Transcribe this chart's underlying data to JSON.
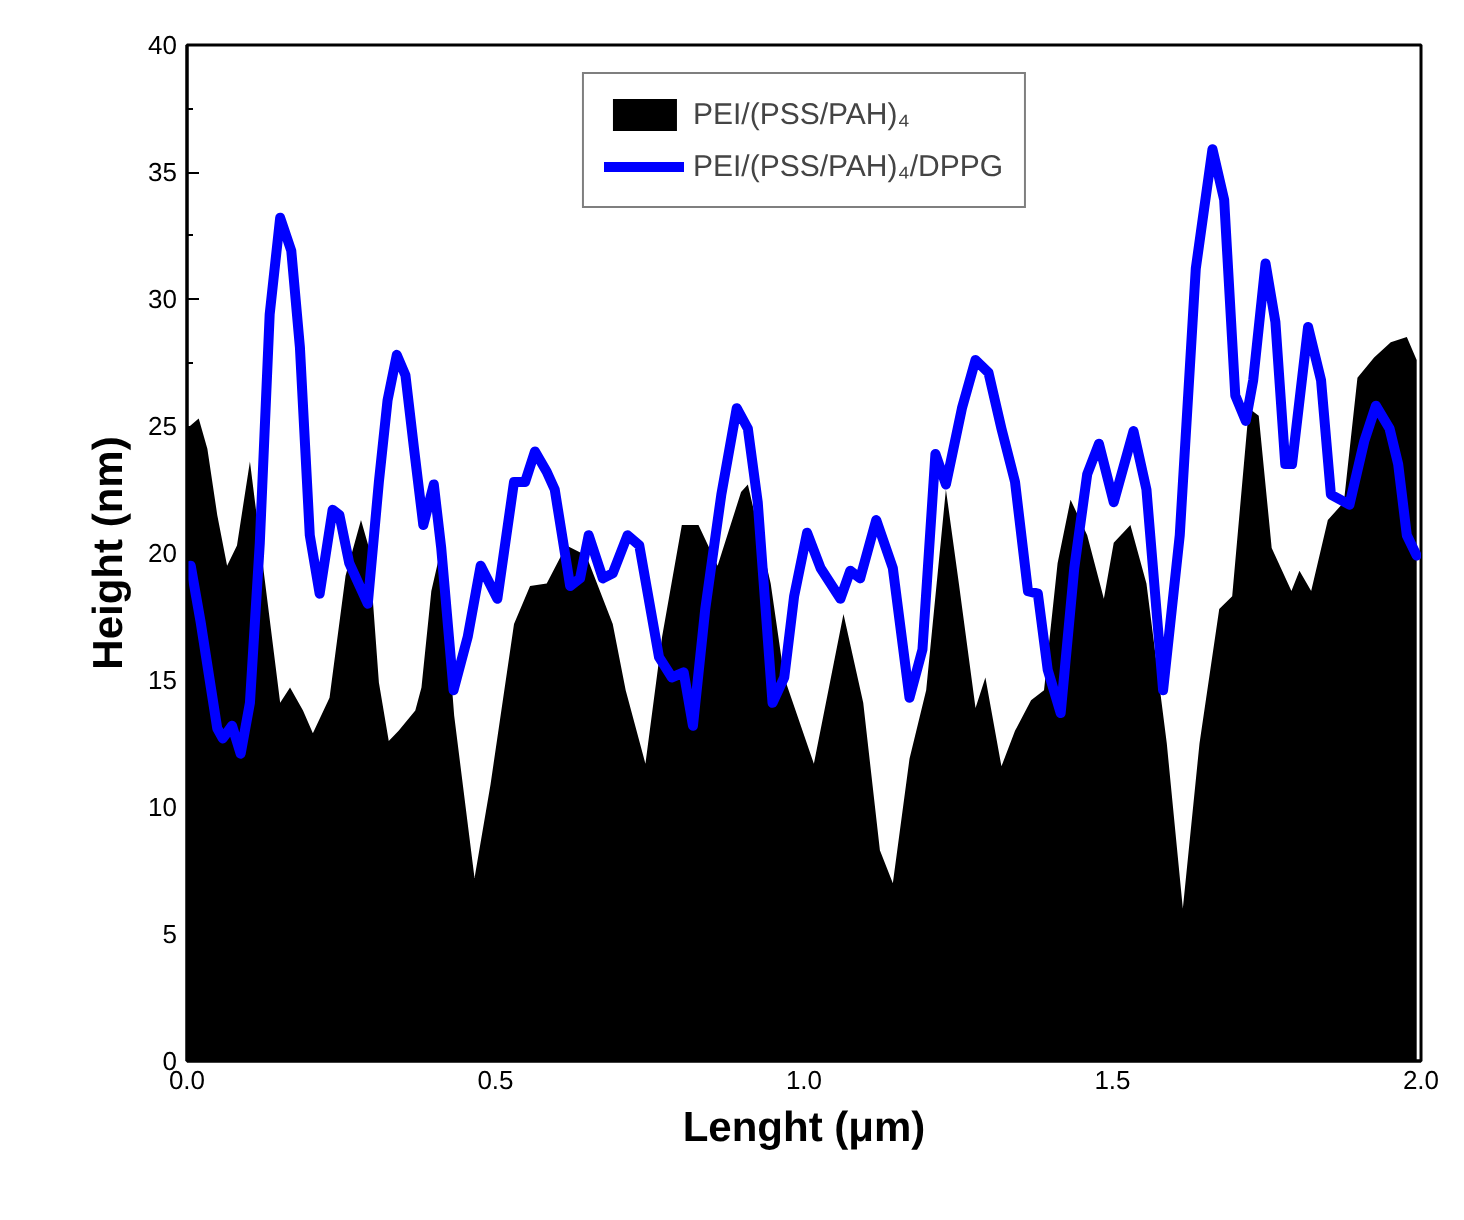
{
  "chart_data": {
    "type": "area",
    "xlabel": "Lenght (μm)",
    "ylabel": "Height (nm)",
    "xlim": [
      0,
      2
    ],
    "ylim": [
      0,
      40
    ],
    "xticks": [
      {
        "value": 0,
        "label": "0.0"
      },
      {
        "value": 0.25,
        "label": null
      },
      {
        "value": 0.5,
        "label": "0.5"
      },
      {
        "value": 0.75,
        "label": null
      },
      {
        "value": 1,
        "label": "1.0"
      },
      {
        "value": 1.25,
        "label": null
      },
      {
        "value": 1.5,
        "label": "1.5"
      },
      {
        "value": 1.75,
        "label": null
      },
      {
        "value": 2,
        "label": "2.0"
      }
    ],
    "yticks": [
      0,
      {
        "value": 2.5,
        "label": null
      },
      5,
      {
        "value": 7.5,
        "label": null
      },
      10,
      {
        "value": 12.5,
        "label": null
      },
      15,
      {
        "value": 17.5,
        "label": null
      },
      20,
      {
        "value": 22.5,
        "label": null
      },
      25,
      {
        "value": 27.5,
        "label": null
      },
      30,
      {
        "value": 32.5,
        "label": null
      },
      35,
      {
        "value": 37.5,
        "label": null
      },
      40
    ],
    "grid": false,
    "legend": "top",
    "series": [
      {
        "name": "PEI/(PSS/PAH)₄",
        "color": "#000000",
        "x": [
          0.0,
          0.019,
          0.033,
          0.049,
          0.065,
          0.081,
          0.102,
          0.151,
          0.167,
          0.188,
          0.204,
          0.231,
          0.257,
          0.282,
          0.295,
          0.311,
          0.327,
          0.343,
          0.37,
          0.38,
          0.396,
          0.412,
          0.433,
          0.466,
          0.492,
          0.53,
          0.556,
          0.583,
          0.615,
          0.647,
          0.69,
          0.711,
          0.743,
          0.77,
          0.802,
          0.829,
          0.86,
          0.898,
          0.909,
          0.946,
          0.968,
          1.016,
          1.064,
          1.096,
          1.123,
          1.144,
          1.171,
          1.198,
          1.23,
          1.251,
          1.278,
          1.294,
          1.32,
          1.342,
          1.368,
          1.389,
          1.411,
          1.432,
          1.459,
          1.486,
          1.502,
          1.529,
          1.555,
          1.588,
          1.614,
          1.641,
          1.673,
          1.694,
          1.721,
          1.737,
          1.758,
          1.79,
          1.803,
          1.822,
          1.849,
          1.875,
          1.897,
          1.924,
          1.951,
          1.977,
          1.993
        ],
        "values": [
          24.9,
          25.3,
          24.1,
          21.5,
          19.5,
          20.3,
          23.6,
          14.1,
          14.7,
          13.8,
          12.9,
          14.3,
          19.1,
          21.3,
          20.2,
          14.9,
          12.6,
          13.0,
          13.8,
          14.7,
          18.5,
          20.2,
          13.6,
          7.2,
          10.9,
          17.2,
          18.7,
          18.8,
          20.3,
          19.9,
          17.2,
          14.6,
          11.7,
          16.7,
          21.1,
          21.1,
          19.5,
          22.4,
          22.7,
          18.8,
          15.1,
          11.7,
          17.6,
          14.1,
          8.3,
          7.0,
          11.9,
          14.6,
          22.5,
          18.8,
          13.9,
          15.1,
          11.6,
          13.0,
          14.2,
          14.6,
          19.6,
          22.1,
          20.7,
          18.2,
          20.4,
          21.1,
          18.8,
          12.5,
          6.0,
          12.5,
          17.8,
          18.3,
          25.7,
          25.4,
          20.2,
          18.5,
          19.3,
          18.5,
          21.3,
          22.0,
          26.9,
          27.7,
          28.3,
          28.5,
          27.6
        ]
      },
      {
        "name": "PEI/(PSS/PAH)₄/DPPG",
        "type": "line",
        "color": "#0000ff",
        "x": [
          0.006,
          0.022,
          0.049,
          0.058,
          0.073,
          0.087,
          0.102,
          0.118,
          0.134,
          0.151,
          0.169,
          0.183,
          0.199,
          0.215,
          0.236,
          0.247,
          0.263,
          0.293,
          0.311,
          0.325,
          0.34,
          0.354,
          0.368,
          0.383,
          0.4,
          0.412,
          0.432,
          0.455,
          0.476,
          0.503,
          0.53,
          0.548,
          0.564,
          0.583,
          0.596,
          0.621,
          0.637,
          0.651,
          0.674,
          0.69,
          0.714,
          0.733,
          0.765,
          0.786,
          0.805,
          0.82,
          0.84,
          0.866,
          0.891,
          0.909,
          0.925,
          0.949,
          0.968,
          0.984,
          1.005,
          1.027,
          1.059,
          1.075,
          1.091,
          1.117,
          1.144,
          1.171,
          1.192,
          1.213,
          1.23,
          1.256,
          1.278,
          1.299,
          1.32,
          1.342,
          1.363,
          1.379,
          1.395,
          1.416,
          1.438,
          1.459,
          1.478,
          1.502,
          1.534,
          1.555,
          1.582,
          1.609,
          1.635,
          1.662,
          1.681,
          1.699,
          1.716,
          1.728,
          1.748,
          1.764,
          1.78,
          1.791,
          1.817,
          1.838,
          1.854,
          1.884,
          1.908,
          1.927,
          1.949,
          1.963,
          1.977,
          1.993
        ],
        "values": [
          19.5,
          17.3,
          13.1,
          12.7,
          13.2,
          12.1,
          14.1,
          20.4,
          29.4,
          33.2,
          31.9,
          28.1,
          20.7,
          18.4,
          21.7,
          21.5,
          19.6,
          18.0,
          22.8,
          26.0,
          27.8,
          27.0,
          24.1,
          21.1,
          22.7,
          20.2,
          14.6,
          16.7,
          19.5,
          18.2,
          22.8,
          22.8,
          24.0,
          23.2,
          22.5,
          18.7,
          19.0,
          20.7,
          19.0,
          19.2,
          20.7,
          20.3,
          15.9,
          15.1,
          15.3,
          13.2,
          17.8,
          22.3,
          25.7,
          24.9,
          22.0,
          14.1,
          15.1,
          18.3,
          20.8,
          19.4,
          18.2,
          19.3,
          19.0,
          21.3,
          19.4,
          14.3,
          16.2,
          23.9,
          22.7,
          25.7,
          27.6,
          27.1,
          24.9,
          22.8,
          18.5,
          18.4,
          15.4,
          13.7,
          19.4,
          23.1,
          24.3,
          22.0,
          24.8,
          22.5,
          14.6,
          20.7,
          31.2,
          35.9,
          33.9,
          26.2,
          25.2,
          26.8,
          31.4,
          29.1,
          23.5,
          23.5,
          28.9,
          26.8,
          22.3,
          21.9,
          24.4,
          25.8,
          24.9,
          23.5,
          20.7,
          19.9
        ]
      }
    ]
  }
}
